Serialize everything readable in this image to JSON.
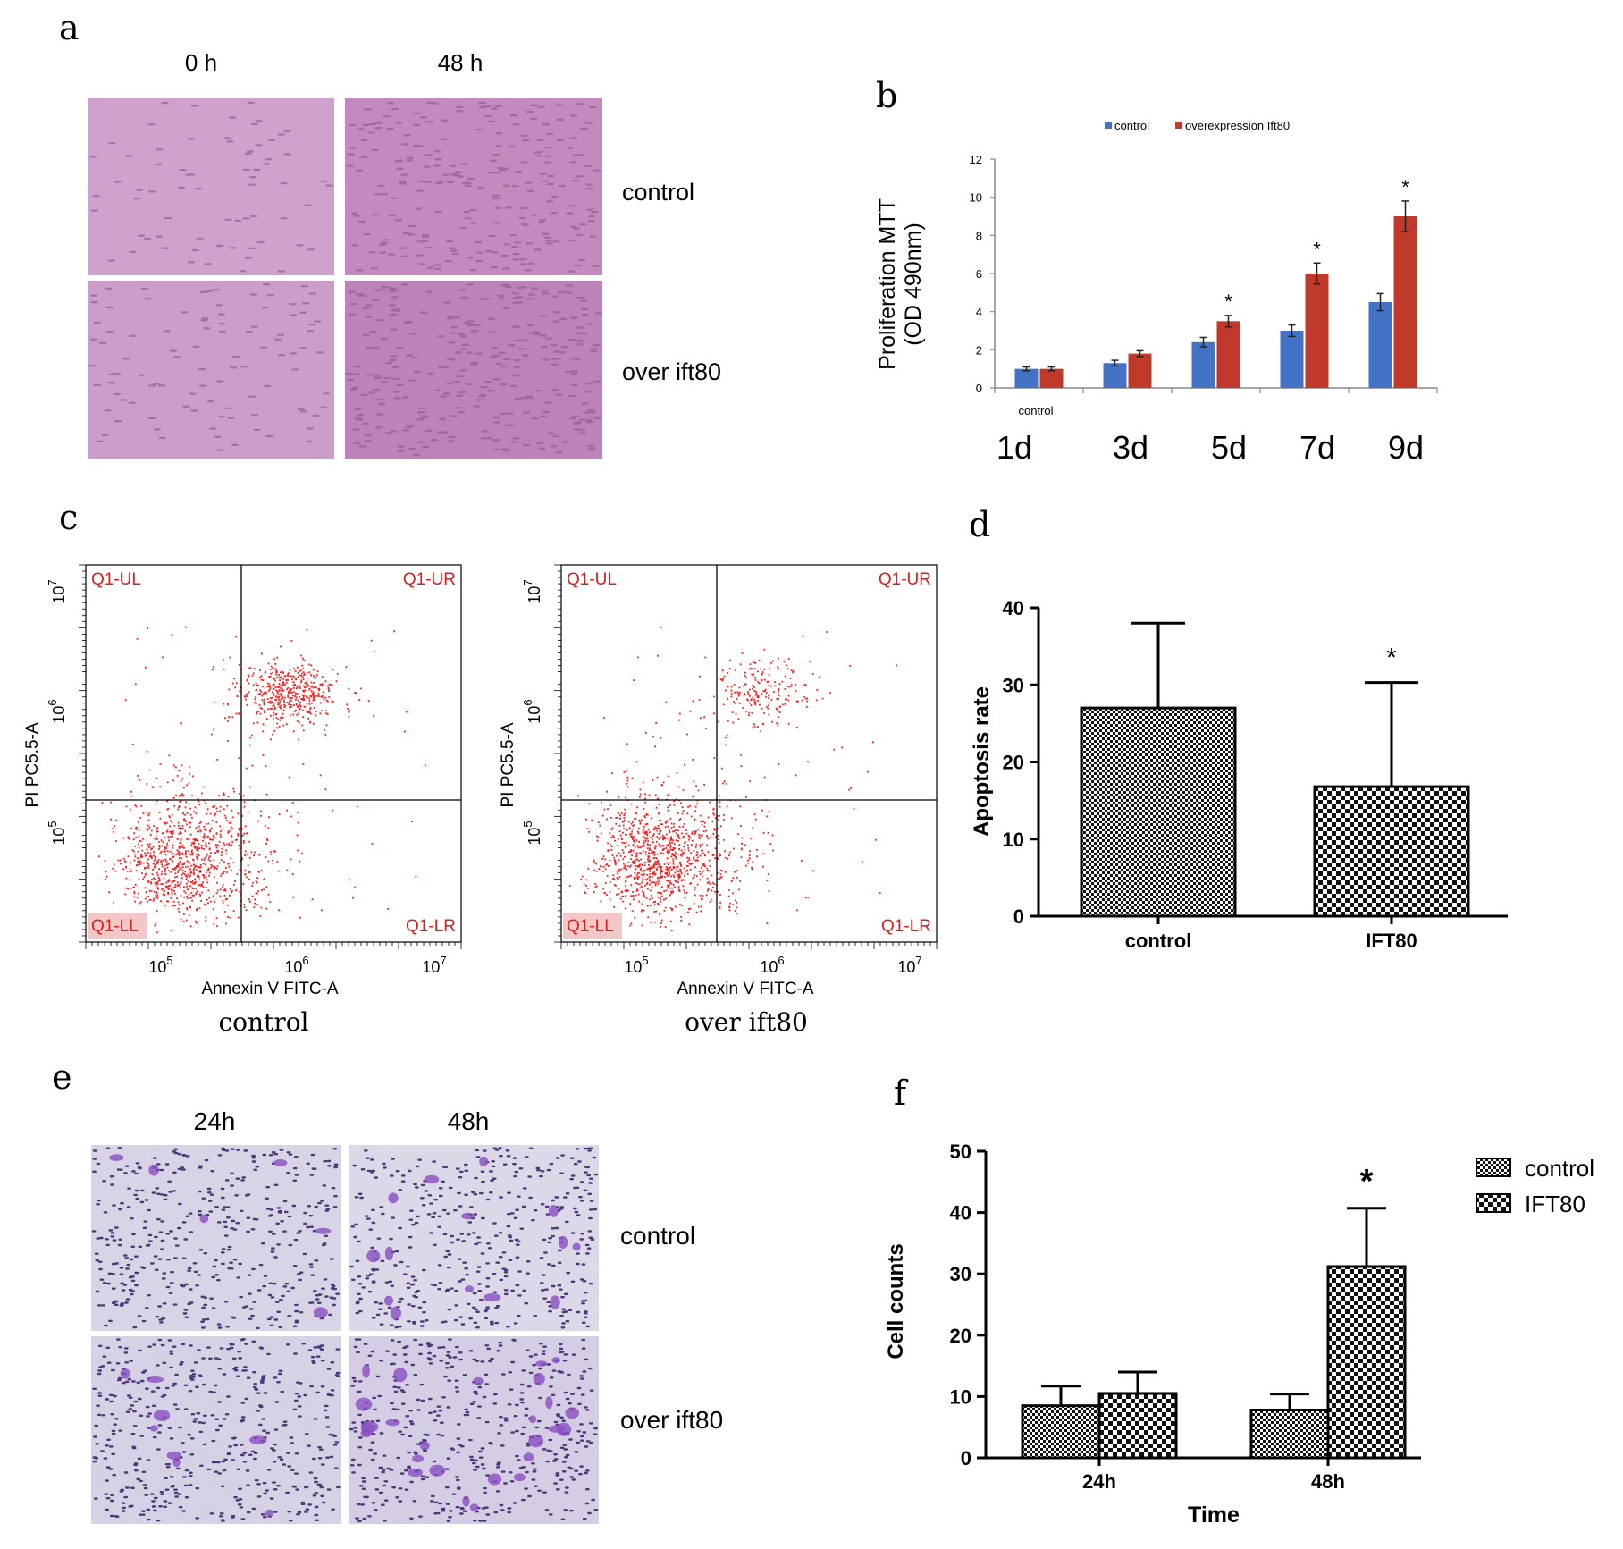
{
  "panels": {
    "a": {
      "letter": "a",
      "col_labels": [
        "0  h",
        "48 h"
      ],
      "row_labels": [
        "control",
        "over ift80"
      ]
    },
    "b": {
      "letter": "b"
    },
    "c": {
      "letter": "c"
    },
    "d": {
      "letter": "d"
    },
    "e": {
      "letter": "e",
      "col_labels": [
        "24h",
        "48h"
      ],
      "row_labels": [
        "control",
        "over ift80"
      ]
    },
    "f": {
      "letter": "f"
    }
  },
  "colors": {
    "control_blue": "#4472c4",
    "overexpression_red": "#c0392b",
    "dot_red": "#ff1a1a",
    "micro_pink": "#c98fc4",
    "micro_dots": "#8e5a92",
    "stain_bg": "#d9d7e8",
    "stain_dots": "#4a3a7a",
    "stain_blob": "#8a4fc2"
  },
  "chart_data": [
    {
      "panel": "b",
      "type": "bar",
      "title": "",
      "ylabel_lines": [
        "Proliferation MTT",
        "(OD 490nm)"
      ],
      "categories": [
        "1d",
        "3d",
        "5d",
        "7d",
        "9d"
      ],
      "sub_label": "control",
      "ylim": [
        0,
        12
      ],
      "yticks": [
        0,
        2,
        4,
        6,
        8,
        10,
        12
      ],
      "legend": [
        "control",
        "overexpression Ift80"
      ],
      "series": [
        {
          "name": "control",
          "values": [
            1.0,
            1.3,
            2.4,
            3.0,
            4.5
          ],
          "errors": [
            0.1,
            0.15,
            0.25,
            0.3,
            0.45
          ]
        },
        {
          "name": "overexpression Ift80",
          "values": [
            1.0,
            1.8,
            3.5,
            6.0,
            9.0
          ],
          "errors": [
            0.1,
            0.15,
            0.3,
            0.55,
            0.8
          ]
        }
      ],
      "significance": [
        "",
        "",
        "*",
        "*",
        "*"
      ]
    },
    {
      "panel": "c",
      "type": "scatter",
      "plots": [
        {
          "caption": "control",
          "xlabel": "Annexin V FITC-A",
          "ylabel": "PI PC5.5-A",
          "quadrants": [
            "Q1-UL",
            "Q1-UR",
            "Q1-LL",
            "Q1-LR"
          ],
          "xticks": [
            "10^5",
            "10^6",
            "10^7"
          ],
          "yticks": [
            "10^5",
            "10^6",
            "10^7"
          ]
        },
        {
          "caption": "over ift80",
          "xlabel": "Annexin V FITC-A",
          "ylabel": "PI PC5.5-A",
          "quadrants": [
            "Q1-UL",
            "Q1-UR",
            "Q1-LL",
            "Q1-LR"
          ],
          "xticks": [
            "10^5",
            "10^6",
            "10^7"
          ],
          "yticks": [
            "10^5",
            "10^6",
            "10^7"
          ]
        }
      ]
    },
    {
      "panel": "d",
      "type": "bar",
      "ylabel": "Apoptosis rate",
      "categories": [
        "control",
        "IFT80"
      ],
      "values": [
        27,
        16.8
      ],
      "errors": [
        11,
        13.5
      ],
      "ylim": [
        0,
        40
      ],
      "yticks": [
        0,
        10,
        20,
        30,
        40
      ],
      "significance": [
        "",
        "*"
      ]
    },
    {
      "panel": "f",
      "type": "bar",
      "ylabel": "Cell counts",
      "xlabel": "Time",
      "categories": [
        "24h",
        "48h"
      ],
      "ylim": [
        0,
        50
      ],
      "yticks": [
        0,
        10,
        20,
        30,
        40,
        50
      ],
      "legend": [
        "control",
        "IFT80"
      ],
      "series": [
        {
          "name": "control",
          "values": [
            8.5,
            7.8
          ],
          "errors": [
            3.2,
            2.6
          ]
        },
        {
          "name": "IFT80",
          "values": [
            10.5,
            31.2
          ],
          "errors": [
            3.5,
            9.5
          ]
        }
      ],
      "significance": [
        "",
        "*"
      ]
    }
  ]
}
